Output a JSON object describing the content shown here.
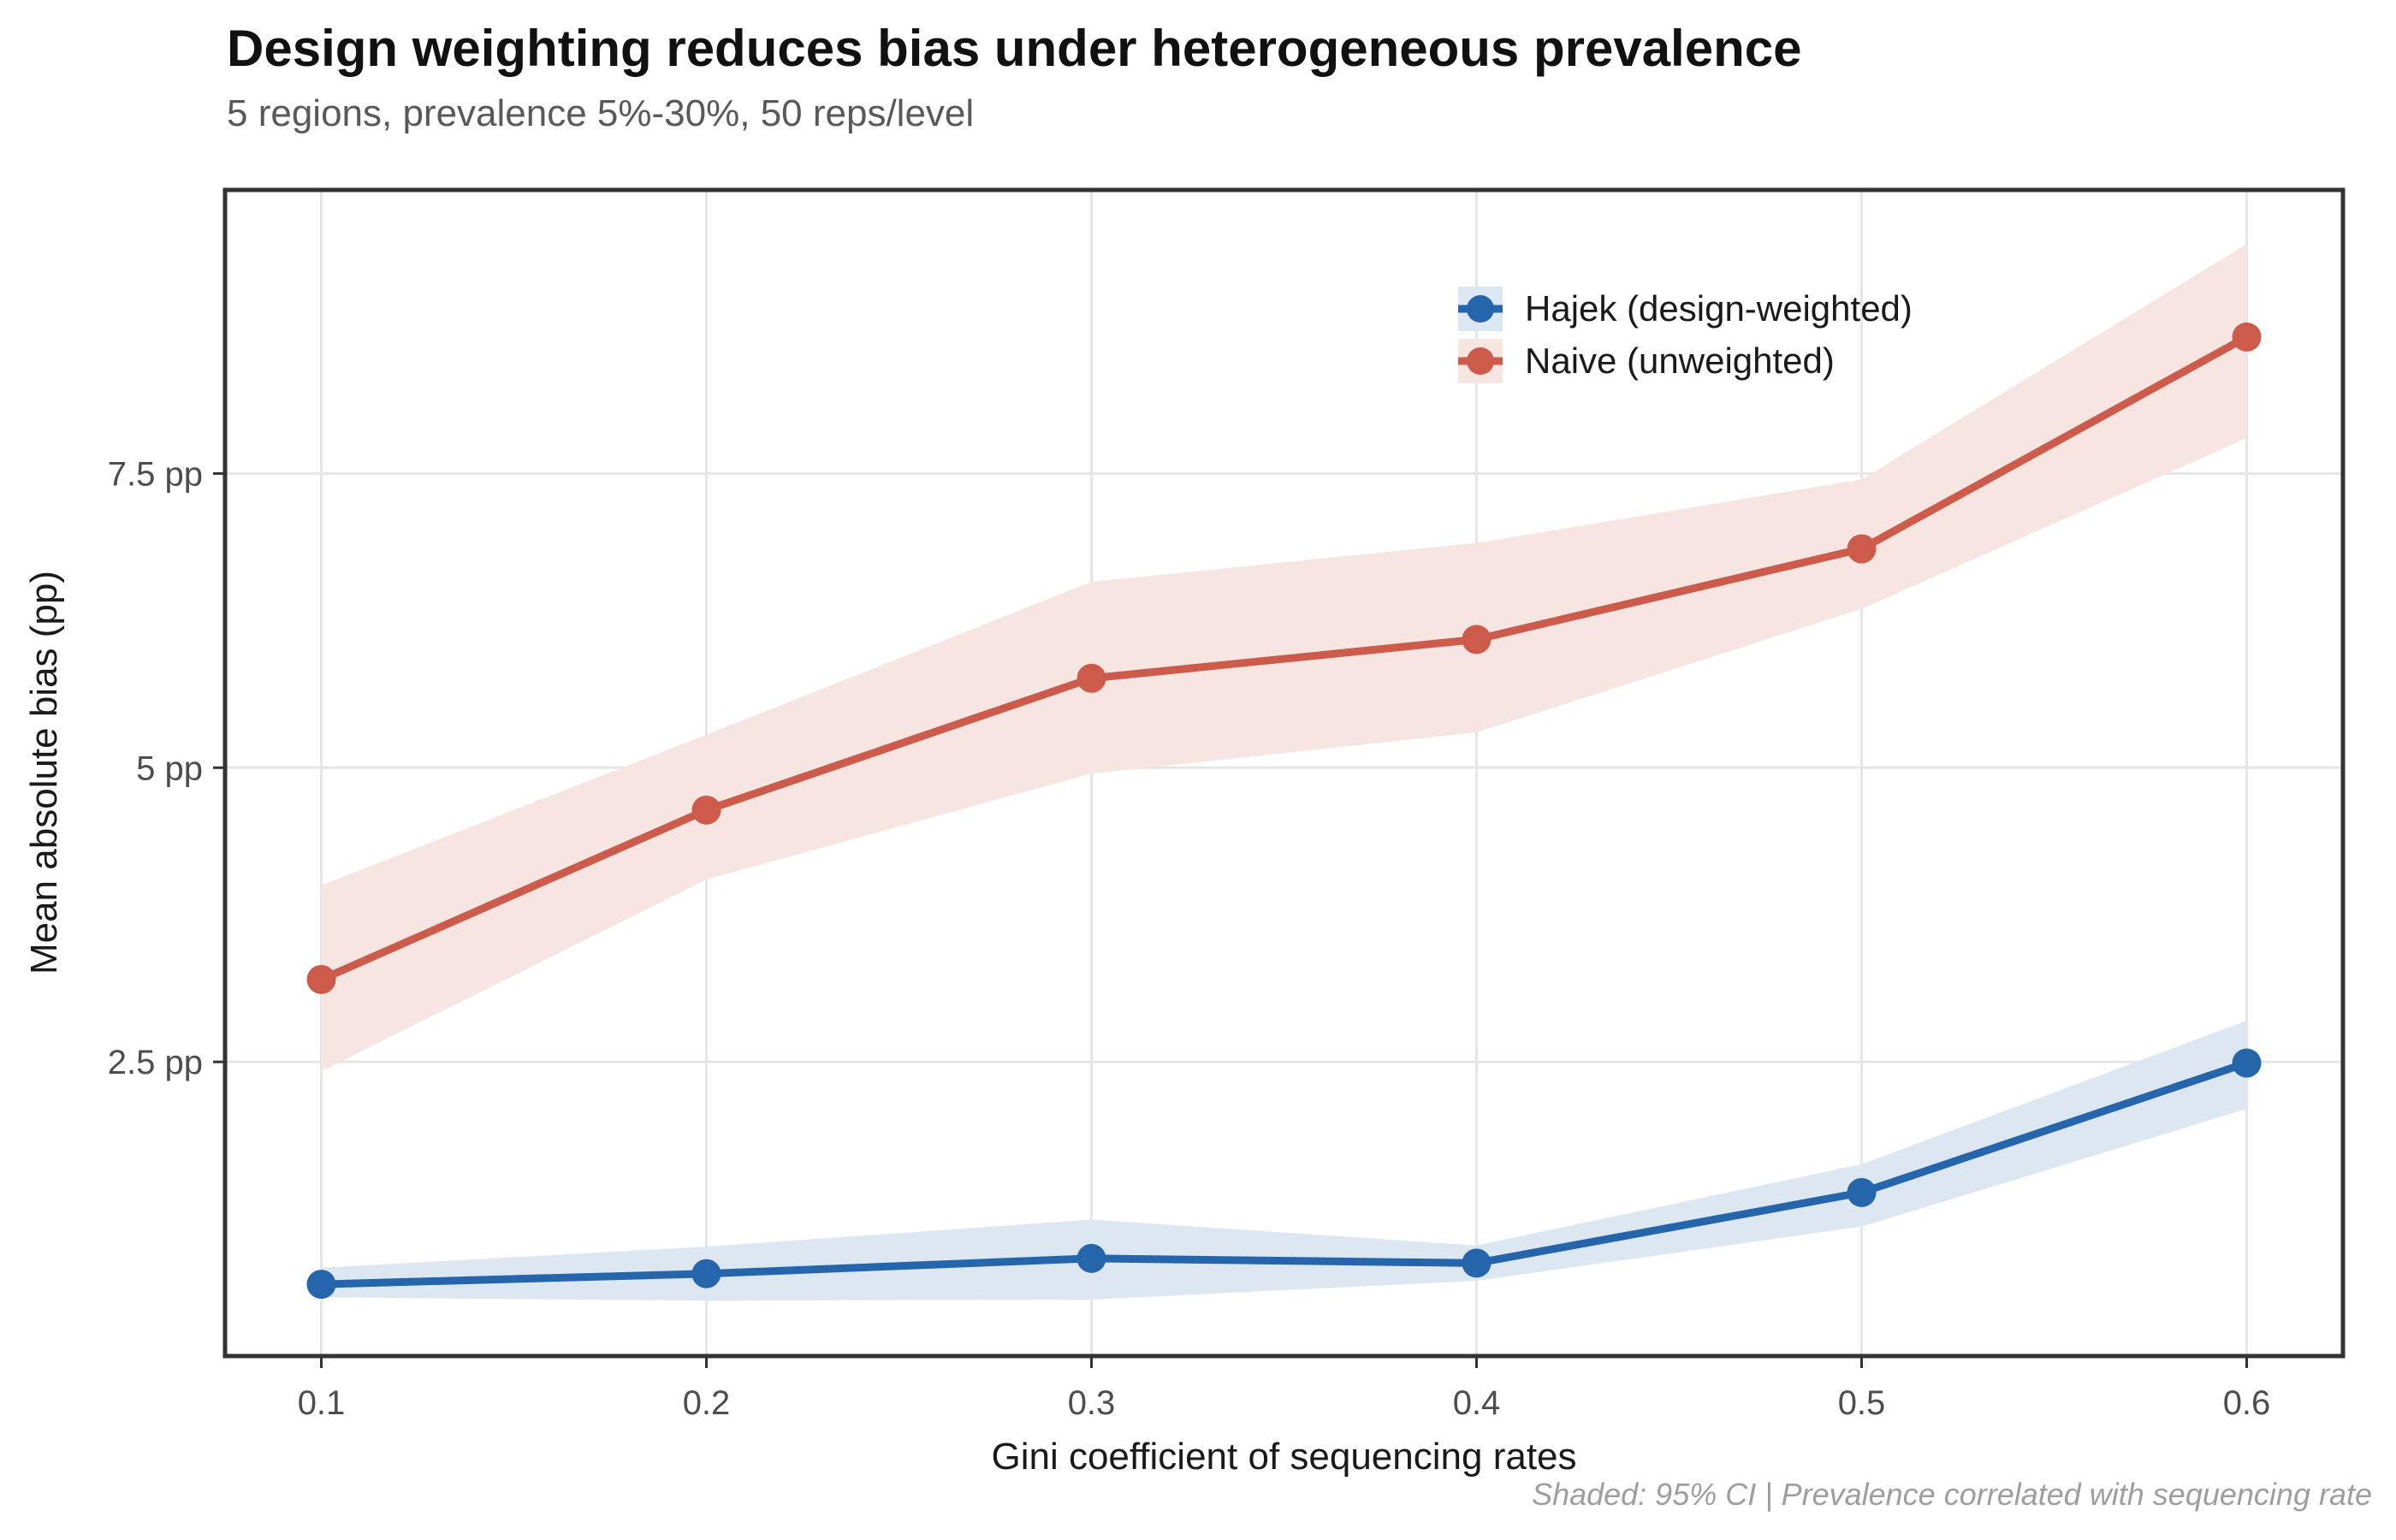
{
  "header": {
    "title": "Design weighting reduces bias under heterogeneous prevalence",
    "subtitle": "5 regions, prevalence 5%-30%, 50 reps/level"
  },
  "footer": {
    "caption": "Shaded: 95% CI | Prevalence correlated with sequencing rate"
  },
  "axes": {
    "x": {
      "title": "Gini coefficient of sequencing rates",
      "ticks": [
        0.1,
        0.2,
        0.3,
        0.4,
        0.5,
        0.6
      ],
      "tick_labels": [
        "0.1",
        "0.2",
        "0.3",
        "0.4",
        "0.5",
        "0.6"
      ]
    },
    "y": {
      "title": "Mean absolute bias (pp)",
      "ticks": [
        2.5,
        5,
        7.5
      ],
      "tick_labels": [
        "2.5 pp",
        "5 pp",
        "7.5 pp"
      ]
    }
  },
  "legend": {
    "items": [
      {
        "id": "hajek",
        "label": "Hajek (design-weighted)",
        "color": "#2565ac",
        "band": "#dde7f1"
      },
      {
        "id": "naive",
        "label": "Naive (unweighted)",
        "color": "#cd5b4c",
        "band": "#f7e5e1"
      }
    ]
  },
  "style": {
    "grid_color": "#e6e6e6",
    "border_color": "#333333",
    "tick_color": "#333333",
    "tick_label_color": "#4d4d4d"
  },
  "chart_data": {
    "type": "line",
    "title": "Design weighting reduces bias under heterogeneous prevalence",
    "subtitle": "5 regions, prevalence 5%-30%, 50 reps/level",
    "caption": "Shaded: 95% CI | Prevalence correlated with sequencing rate",
    "xlabel": "Gini coefficient of sequencing rates",
    "ylabel": "Mean absolute bias (pp)",
    "x": [
      0.1,
      0.2,
      0.3,
      0.4,
      0.5,
      0.6
    ],
    "series": [
      {
        "id": "hajek",
        "name": "Hajek (design-weighted)",
        "color": "#2565ac",
        "band_color": "#dde7f1",
        "values": [
          0.61,
          0.7,
          0.83,
          0.79,
          1.39,
          2.49
        ],
        "ci_lower": [
          0.5,
          0.47,
          0.48,
          0.64,
          1.1,
          2.1
        ],
        "ci_upper": [
          0.75,
          0.93,
          1.16,
          0.94,
          1.63,
          2.85
        ]
      },
      {
        "id": "naive",
        "name": "Naive (unweighted)",
        "color": "#cd5b4c",
        "band_color": "#f7e5e1",
        "values": [
          3.2,
          4.64,
          5.76,
          6.09,
          6.86,
          8.66
        ],
        "ci_lower": [
          2.42,
          4.05,
          4.95,
          5.3,
          6.35,
          7.8
        ],
        "ci_upper": [
          4.0,
          5.28,
          6.58,
          6.91,
          7.45,
          9.45
        ]
      }
    ],
    "xlim": [
      0.075,
      0.625
    ],
    "ylim": [
      0,
      9.91
    ],
    "x_tick_labels": [
      "0.1",
      "0.2",
      "0.3",
      "0.4",
      "0.5",
      "0.6"
    ],
    "y_tick_labels": [
      "2.5 pp",
      "5 pp",
      "7.5 pp"
    ],
    "y_ticks": [
      2.5,
      5,
      7.5
    ],
    "grid": true,
    "legend_position": "inside top-right",
    "units": "percentage points"
  }
}
